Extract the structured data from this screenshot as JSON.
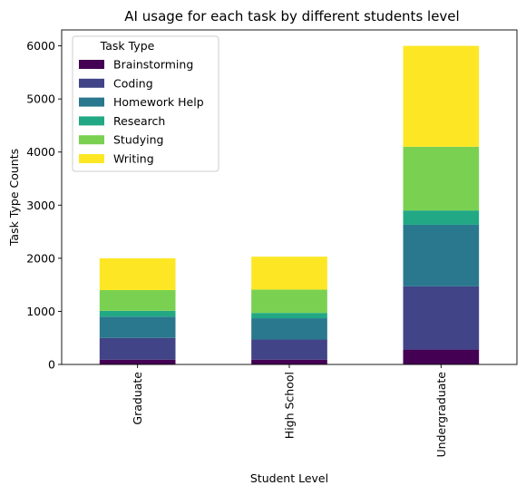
{
  "chart_data": {
    "type": "bar",
    "stacked": true,
    "title": "AI usage for each task by different students level",
    "xlabel": "Student Level",
    "ylabel": "Task Type Counts",
    "categories": [
      "Graduate",
      "High School",
      "Undergraduate"
    ],
    "ylim": [
      0,
      6300
    ],
    "yticks": [
      0,
      1000,
      2000,
      3000,
      4000,
      5000,
      6000
    ],
    "legend": {
      "title": "Task Type",
      "position": "top-left"
    },
    "series": [
      {
        "name": "Brainstorming",
        "color": "#440154",
        "values": [
          90,
          90,
          280
        ]
      },
      {
        "name": "Coding",
        "color": "#414487",
        "values": [
          410,
          380,
          1190
        ]
      },
      {
        "name": "Homework Help",
        "color": "#2a788e",
        "values": [
          400,
          400,
          1160
        ]
      },
      {
        "name": "Research",
        "color": "#22a884",
        "values": [
          110,
          100,
          270
        ]
      },
      {
        "name": "Studying",
        "color": "#7ad151",
        "values": [
          390,
          440,
          1200
        ]
      },
      {
        "name": "Writing",
        "color": "#fde725",
        "values": [
          600,
          620,
          1900
        ]
      }
    ]
  }
}
